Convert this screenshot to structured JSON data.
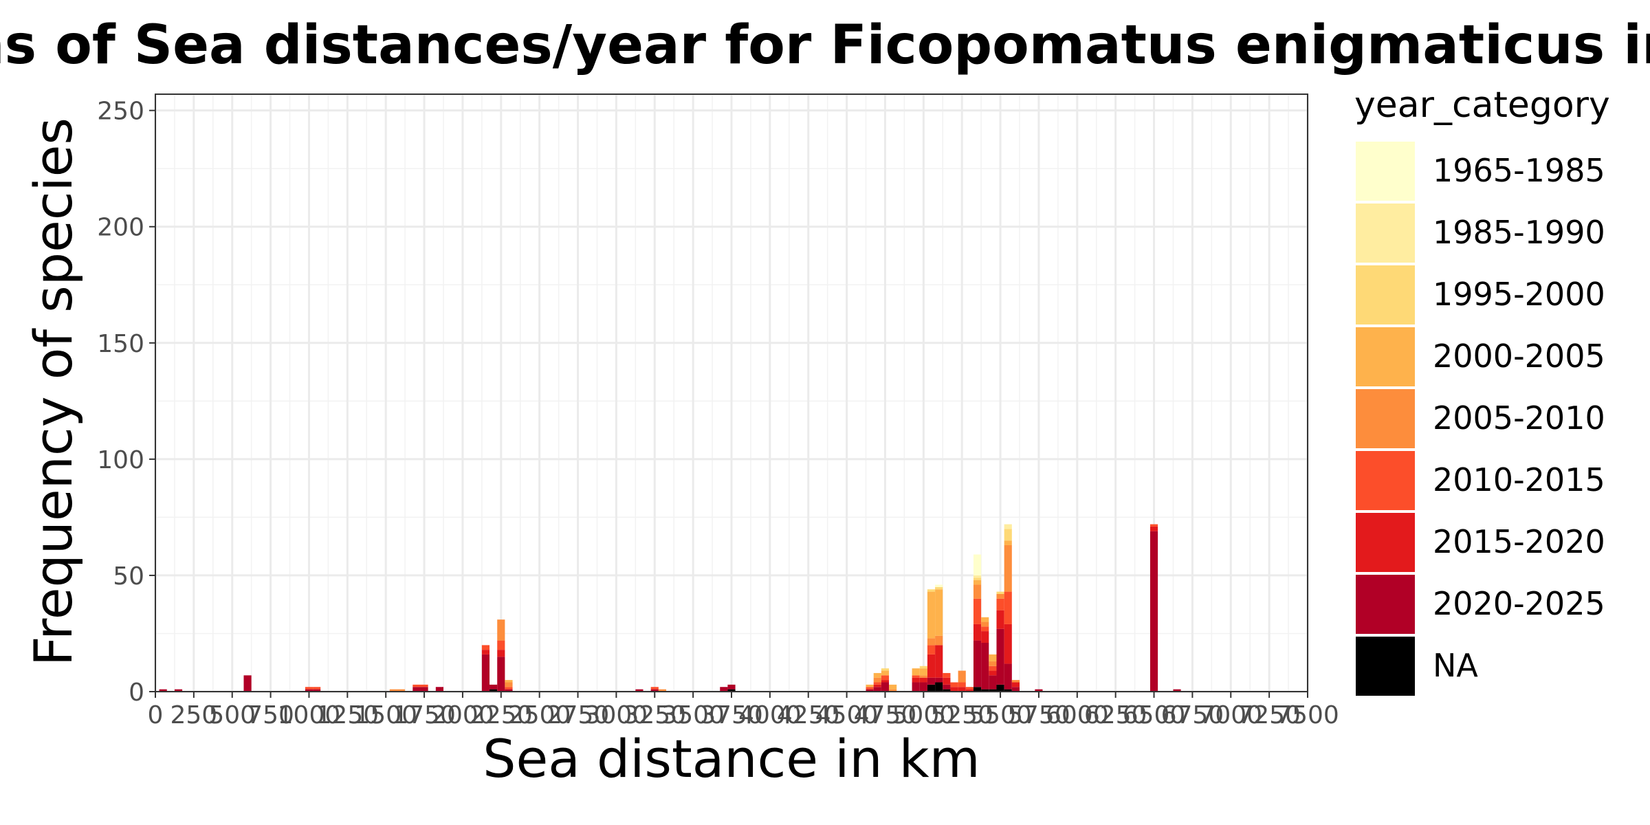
{
  "chart_data": {
    "type": "bar",
    "stacked": true,
    "title": "Histograms of Sea distances/year for Ficopomatus enigmaticus in Ravenna",
    "xlabel": "Sea distance in km",
    "ylabel": "Frequency of species",
    "xlim": [
      0,
      7500
    ],
    "ylim": [
      0,
      257
    ],
    "bin_width": 50,
    "x_ticks": [
      0,
      250,
      500,
      750,
      1000,
      1250,
      1500,
      1750,
      2000,
      2250,
      2500,
      2750,
      3000,
      3250,
      3500,
      3750,
      4000,
      4250,
      4500,
      4750,
      5000,
      5250,
      5500,
      5750,
      6000,
      6250,
      6500,
      6750,
      7000,
      7250,
      7500
    ],
    "x_tick_labels": [
      "0",
      "250",
      "500",
      "750",
      "1000",
      "1250",
      "1500",
      "1750",
      "2000",
      "2250",
      "2500",
      "2750",
      "3000",
      "3250",
      "3500",
      "3750",
      "4000",
      "4250",
      "4500",
      "4750",
      "5000",
      "5250",
      "5500",
      "5750",
      "6000",
      "6250",
      "6500",
      "6750",
      "7000",
      "7250",
      "7500"
    ],
    "y_ticks": [
      0,
      50,
      100,
      150,
      200,
      250
    ],
    "y_tick_labels": [
      "0",
      "50",
      "100",
      "150",
      "200",
      "250"
    ],
    "grid": true,
    "legend": {
      "title": "year_category",
      "position": "right",
      "items": [
        {
          "label": "1965-1985",
          "color": "#FFFFCC"
        },
        {
          "label": "1985-1990",
          "color": "#FFEDA0"
        },
        {
          "label": "1995-2000",
          "color": "#FED976"
        },
        {
          "label": "2000-2005",
          "color": "#FEB24C"
        },
        {
          "label": "2005-2010",
          "color": "#FD8D3C"
        },
        {
          "label": "2010-2015",
          "color": "#FC4E2A"
        },
        {
          "label": "2015-2020",
          "color": "#E31A1C"
        },
        {
          "label": "2020-2025",
          "color": "#B10026"
        },
        {
          "label": "NA",
          "color": "#000000"
        }
      ]
    },
    "bars": [
      {
        "x": 50,
        "segments": [
          {
            "category": "2020-2025",
            "value": 1
          }
        ]
      },
      {
        "x": 150,
        "segments": [
          {
            "category": "2020-2025",
            "value": 1
          }
        ]
      },
      {
        "x": 600,
        "segments": [
          {
            "category": "2020-2025",
            "value": 7
          }
        ]
      },
      {
        "x": 1000,
        "segments": [
          {
            "category": "2020-2025",
            "value": 1
          },
          {
            "category": "2010-2015",
            "value": 1
          }
        ]
      },
      {
        "x": 1050,
        "segments": [
          {
            "category": "2020-2025",
            "value": 1
          },
          {
            "category": "2010-2015",
            "value": 1
          }
        ]
      },
      {
        "x": 1550,
        "segments": [
          {
            "category": "2005-2010",
            "value": 1
          }
        ]
      },
      {
        "x": 1600,
        "segments": [
          {
            "category": "2005-2010",
            "value": 1
          }
        ]
      },
      {
        "x": 1700,
        "segments": [
          {
            "category": "2020-2025",
            "value": 2
          },
          {
            "category": "2010-2015",
            "value": 1
          }
        ]
      },
      {
        "x": 1750,
        "segments": [
          {
            "category": "2020-2025",
            "value": 2
          },
          {
            "category": "2010-2015",
            "value": 1
          }
        ]
      },
      {
        "x": 1850,
        "segments": [
          {
            "category": "2020-2025",
            "value": 2
          }
        ]
      },
      {
        "x": 2150,
        "segments": [
          {
            "category": "2020-2025",
            "value": 16
          },
          {
            "category": "2015-2020",
            "value": 2
          },
          {
            "category": "2010-2015",
            "value": 2
          }
        ]
      },
      {
        "x": 2200,
        "segments": [
          {
            "category": "NA",
            "value": 1
          },
          {
            "category": "2020-2025",
            "value": 2
          }
        ]
      },
      {
        "x": 2250,
        "segments": [
          {
            "category": "2020-2025",
            "value": 15
          },
          {
            "category": "2015-2020",
            "value": 3
          },
          {
            "category": "2010-2015",
            "value": 4
          },
          {
            "category": "2005-2010",
            "value": 9
          }
        ]
      },
      {
        "x": 2300,
        "segments": [
          {
            "category": "2020-2025",
            "value": 1
          },
          {
            "category": "2010-2015",
            "value": 1
          },
          {
            "category": "2005-2010",
            "value": 2
          },
          {
            "category": "2000-2005",
            "value": 1
          }
        ]
      },
      {
        "x": 3150,
        "segments": [
          {
            "category": "2020-2025",
            "value": 1
          }
        ]
      },
      {
        "x": 3250,
        "segments": [
          {
            "category": "2020-2025",
            "value": 1
          },
          {
            "category": "2010-2015",
            "value": 1
          }
        ]
      },
      {
        "x": 3300,
        "segments": [
          {
            "category": "2005-2010",
            "value": 1
          }
        ]
      },
      {
        "x": 3700,
        "segments": [
          {
            "category": "2020-2025",
            "value": 2
          }
        ]
      },
      {
        "x": 3750,
        "segments": [
          {
            "category": "NA",
            "value": 1
          },
          {
            "category": "2020-2025",
            "value": 2
          }
        ]
      },
      {
        "x": 4650,
        "segments": [
          {
            "category": "2020-2025",
            "value": 1
          },
          {
            "category": "2010-2015",
            "value": 1
          },
          {
            "category": "2000-2005",
            "value": 1
          }
        ]
      },
      {
        "x": 4700,
        "segments": [
          {
            "category": "2020-2025",
            "value": 2
          },
          {
            "category": "2015-2020",
            "value": 1
          },
          {
            "category": "2010-2015",
            "value": 1
          },
          {
            "category": "2005-2010",
            "value": 2
          },
          {
            "category": "2000-2005",
            "value": 2
          }
        ]
      },
      {
        "x": 4750,
        "segments": [
          {
            "category": "2020-2025",
            "value": 4
          },
          {
            "category": "2015-2020",
            "value": 1
          },
          {
            "category": "2010-2015",
            "value": 2
          },
          {
            "category": "2000-2005",
            "value": 2
          },
          {
            "category": "1995-2000",
            "value": 1
          }
        ]
      },
      {
        "x": 4800,
        "segments": [
          {
            "category": "2005-2010",
            "value": 1
          },
          {
            "category": "2000-2005",
            "value": 2
          }
        ]
      },
      {
        "x": 4950,
        "segments": [
          {
            "category": "2020-2025",
            "value": 4
          },
          {
            "category": "2015-2020",
            "value": 2
          },
          {
            "category": "2010-2015",
            "value": 1
          },
          {
            "category": "2000-2005",
            "value": 3
          }
        ]
      },
      {
        "x": 5000,
        "segments": [
          {
            "category": "2020-2025",
            "value": 4
          },
          {
            "category": "2015-2020",
            "value": 2
          },
          {
            "category": "2005-2010",
            "value": 1
          },
          {
            "category": "2000-2005",
            "value": 3
          },
          {
            "category": "1995-2000",
            "value": 1
          }
        ]
      },
      {
        "x": 5050,
        "segments": [
          {
            "category": "NA",
            "value": 3
          },
          {
            "category": "2020-2025",
            "value": 3
          },
          {
            "category": "2015-2020",
            "value": 10
          },
          {
            "category": "2010-2015",
            "value": 4
          },
          {
            "category": "2005-2010",
            "value": 3
          },
          {
            "category": "2000-2005",
            "value": 20
          },
          {
            "category": "1995-2000",
            "value": 1
          }
        ]
      },
      {
        "x": 5100,
        "segments": [
          {
            "category": "NA",
            "value": 4
          },
          {
            "category": "2020-2025",
            "value": 2
          },
          {
            "category": "2015-2020",
            "value": 14
          },
          {
            "category": "2005-2010",
            "value": 4
          },
          {
            "category": "2000-2005",
            "value": 20
          },
          {
            "category": "1995-2000",
            "value": 1
          },
          {
            "category": "1965-1985",
            "value": 1
          }
        ]
      },
      {
        "x": 5150,
        "segments": [
          {
            "category": "NA",
            "value": 1
          },
          {
            "category": "2020-2025",
            "value": 2
          },
          {
            "category": "2015-2020",
            "value": 3
          },
          {
            "category": "2010-2015",
            "value": 2
          }
        ]
      },
      {
        "x": 5200,
        "segments": [
          {
            "category": "2015-2020",
            "value": 2
          },
          {
            "category": "2010-2015",
            "value": 2
          }
        ]
      },
      {
        "x": 5250,
        "segments": [
          {
            "category": "2015-2020",
            "value": 2
          },
          {
            "category": "2010-2015",
            "value": 2
          },
          {
            "category": "2005-2010",
            "value": 5
          }
        ]
      },
      {
        "x": 5300,
        "segments": [
          {
            "category": "2015-2020",
            "value": 1
          },
          {
            "category": "2010-2015",
            "value": 1
          }
        ]
      },
      {
        "x": 5350,
        "segments": [
          {
            "category": "NA",
            "value": 2
          },
          {
            "category": "2020-2025",
            "value": 20
          },
          {
            "category": "2015-2020",
            "value": 7
          },
          {
            "category": "2010-2015",
            "value": 11
          },
          {
            "category": "2005-2010",
            "value": 6
          },
          {
            "category": "2000-2005",
            "value": 2
          },
          {
            "category": "1995-2000",
            "value": 1
          },
          {
            "category": "1985-1990",
            "value": 1
          },
          {
            "category": "1965-1985",
            "value": 9
          }
        ]
      },
      {
        "x": 5400,
        "segments": [
          {
            "category": "NA",
            "value": 1
          },
          {
            "category": "2020-2025",
            "value": 20
          },
          {
            "category": "2015-2020",
            "value": 5
          },
          {
            "category": "2010-2015",
            "value": 2
          },
          {
            "category": "2005-2010",
            "value": 2
          },
          {
            "category": "2000-2005",
            "value": 2
          }
        ]
      },
      {
        "x": 5450,
        "segments": [
          {
            "category": "NA",
            "value": 1
          },
          {
            "category": "2020-2025",
            "value": 6
          },
          {
            "category": "2015-2020",
            "value": 2
          },
          {
            "category": "2010-2015",
            "value": 2
          },
          {
            "category": "2005-2010",
            "value": 2
          },
          {
            "category": "2000-2005",
            "value": 3
          }
        ]
      },
      {
        "x": 5500,
        "segments": [
          {
            "category": "NA",
            "value": 3
          },
          {
            "category": "2020-2025",
            "value": 24
          },
          {
            "category": "2015-2020",
            "value": 8
          },
          {
            "category": "2010-2015",
            "value": 5
          },
          {
            "category": "2005-2010",
            "value": 2
          },
          {
            "category": "1995-2000",
            "value": 1
          }
        ]
      },
      {
        "x": 5550,
        "segments": [
          {
            "category": "NA",
            "value": 1
          },
          {
            "category": "2020-2025",
            "value": 11
          },
          {
            "category": "2015-2020",
            "value": 17
          },
          {
            "category": "2010-2015",
            "value": 14
          },
          {
            "category": "2005-2010",
            "value": 20
          },
          {
            "category": "2000-2005",
            "value": 2
          },
          {
            "category": "1995-2000",
            "value": 5
          },
          {
            "category": "1985-1990",
            "value": 2
          }
        ]
      },
      {
        "x": 5600,
        "segments": [
          {
            "category": "2020-2025",
            "value": 2
          },
          {
            "category": "2015-2020",
            "value": 2
          },
          {
            "category": "2005-2010",
            "value": 1
          }
        ]
      },
      {
        "x": 5750,
        "segments": [
          {
            "category": "2020-2025",
            "value": 1
          }
        ]
      },
      {
        "x": 6500,
        "segments": [
          {
            "category": "2020-2025",
            "value": 69
          },
          {
            "category": "2015-2020",
            "value": 2
          },
          {
            "category": "2010-2015",
            "value": 1
          }
        ]
      },
      {
        "x": 6650,
        "segments": [
          {
            "category": "2020-2025",
            "value": 1
          }
        ]
      }
    ]
  }
}
